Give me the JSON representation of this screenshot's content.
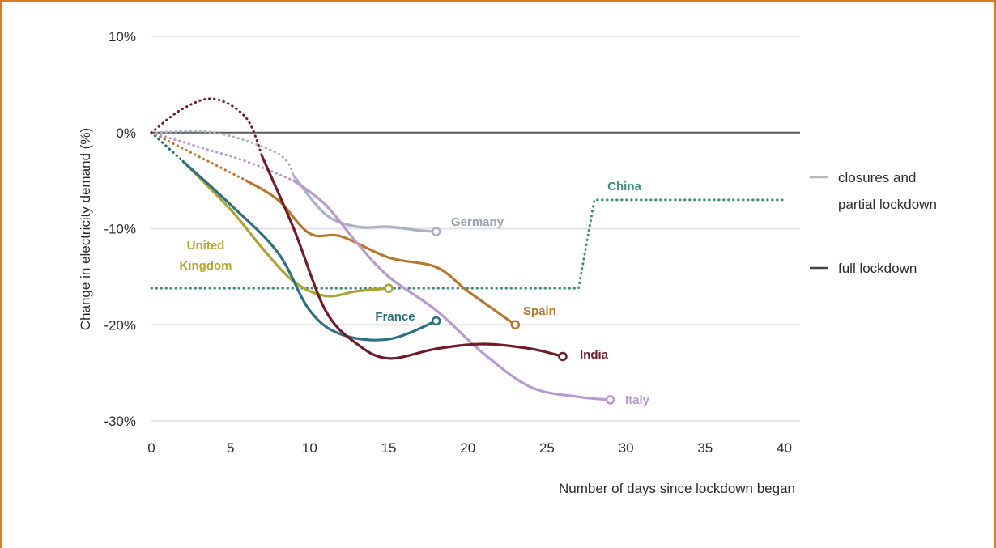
{
  "chart_data": {
    "type": "line",
    "title": "",
    "xlabel": "Number of days since lockdown began",
    "ylabel": "Change in electricity demand (%)",
    "xlim": [
      0,
      41
    ],
    "ylim": [
      -30,
      10
    ],
    "xticks": [
      0,
      5,
      10,
      15,
      20,
      25,
      30,
      35,
      40
    ],
    "xtick_labels": [
      "0",
      "5",
      "10",
      "15",
      "20",
      "25",
      "30",
      "35",
      "40"
    ],
    "yticks": [
      10,
      0,
      -10,
      -20,
      -30
    ],
    "ytick_labels": [
      "10%",
      "0%",
      "-10%",
      "-20%",
      "-30%"
    ],
    "grid": true,
    "legend": {
      "placement": "right",
      "items": [
        {
          "label_lines": [
            "closures and",
            "partial lockdown"
          ],
          "color": "#b8b8b8",
          "style": "closures"
        },
        {
          "label_lines": [
            "full lockdown"
          ],
          "color": "#444444",
          "style": "full"
        }
      ]
    },
    "series": [
      {
        "name": "Germany",
        "color": "#a9b1c6",
        "label_color": "#9aa0ad",
        "phases": [
          {
            "style": "dotted",
            "x": [
              0,
              4,
              8,
              9
            ],
            "y": [
              0,
              0,
              -2.2,
              -4.5
            ]
          },
          {
            "style": "solid",
            "x": [
              9,
              11,
              13,
              15,
              17,
              18
            ],
            "y": [
              -4.5,
              -8.5,
              -9.8,
              -9.8,
              -10.2,
              -10.3
            ]
          }
        ],
        "end_marker": true
      },
      {
        "name": "United Kingdom",
        "label_lines": [
          "United",
          "Kingdom"
        ],
        "color": "#aaa336",
        "label_color": "#b5a82e",
        "phases": [
          {
            "style": "dotted",
            "x": [
              0,
              2
            ],
            "y": [
              0,
              -3
            ]
          },
          {
            "style": "solid",
            "x": [
              2,
              5,
              7,
              9,
              11,
              13,
              15
            ],
            "y": [
              -3,
              -8,
              -12,
              -15.5,
              -17,
              -16.5,
              -16.2
            ]
          }
        ],
        "end_marker": true
      },
      {
        "name": "China",
        "color": "#3f8f7a",
        "label_color": "#3f8f7a",
        "phases": [
          {
            "style": "dotted",
            "x": [
              0,
              27,
              28,
              40
            ],
            "y": [
              -16.2,
              -16.2,
              -7,
              -7
            ]
          }
        ],
        "end_marker": false
      },
      {
        "name": "France",
        "color": "#2f6f80",
        "label_color": "#2f6f80",
        "phases": [
          {
            "style": "dotted",
            "x": [
              0,
              2
            ],
            "y": [
              0,
              -3
            ]
          },
          {
            "style": "solid",
            "x": [
              2,
              5,
              8,
              10,
              12,
              15,
              18
            ],
            "y": [
              -3,
              -7.5,
              -12.5,
              -18.5,
              -21,
              -21.5,
              -19.6
            ]
          }
        ],
        "end_marker": true
      },
      {
        "name": "Spain",
        "color": "#b5782f",
        "label_color": "#b5782f",
        "phases": [
          {
            "style": "dotted",
            "x": [
              0,
              6
            ],
            "y": [
              0,
              -5
            ]
          },
          {
            "style": "solid",
            "x": [
              6,
              8,
              10,
              12,
              15,
              18,
              20,
              23
            ],
            "y": [
              -5,
              -7,
              -10.5,
              -10.8,
              -13,
              -14,
              -16.5,
              -20
            ]
          }
        ],
        "end_marker": true
      },
      {
        "name": "India",
        "color": "#6e1b2a",
        "label_color": "#6e1b2a",
        "phases": [
          {
            "style": "dotted",
            "x": [
              0,
              2,
              4,
              6,
              7
            ],
            "y": [
              0,
              2.5,
              3.5,
              1.5,
              -2.5
            ]
          },
          {
            "style": "solid",
            "x": [
              7,
              9,
              11,
              13,
              15,
              18,
              21,
              24,
              26
            ],
            "y": [
              -2.5,
              -10,
              -18.5,
              -22,
              -23.5,
              -22.5,
              -22,
              -22.5,
              -23.3
            ]
          }
        ],
        "end_marker": true
      },
      {
        "name": "Italy",
        "color": "#b99ad0",
        "label_color": "#b99ad0",
        "phases": [
          {
            "style": "dotted",
            "x": [
              0,
              3,
              6,
              9
            ],
            "y": [
              0,
              -1.5,
              -3,
              -5
            ]
          },
          {
            "style": "solid",
            "x": [
              9,
              11,
              13,
              15,
              18,
              21,
              24,
              27,
              29
            ],
            "y": [
              -5,
              -7.5,
              -11.5,
              -15,
              -18.5,
              -23,
              -26.5,
              -27.5,
              -27.8
            ]
          }
        ],
        "end_marker": true
      }
    ]
  }
}
